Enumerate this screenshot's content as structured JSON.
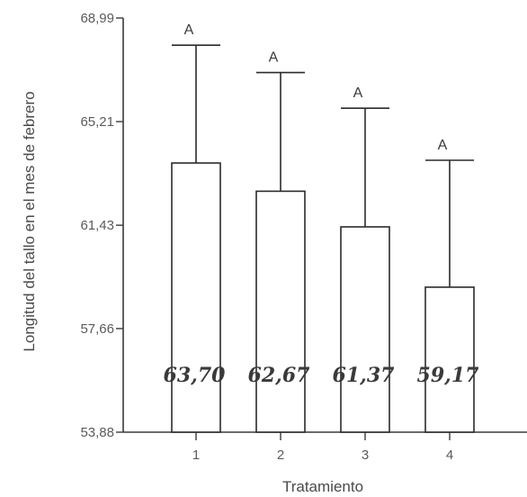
{
  "chart_data": {
    "type": "bar",
    "xlabel": "Tratamiento",
    "ylabel": "Longitud del tallo en el mes de febrero",
    "categories": [
      "1",
      "2",
      "3",
      "4"
    ],
    "values": [
      63.7,
      62.67,
      61.37,
      59.17
    ],
    "value_labels": [
      "63,70",
      "62,67",
      "61,37",
      "59,17"
    ],
    "error_upper": [
      68.0,
      67.0,
      65.7,
      63.8
    ],
    "significance_letters": [
      "A",
      "A",
      "A",
      "A"
    ],
    "yticks": [
      53.88,
      57.66,
      61.43,
      65.21,
      68.99
    ],
    "ytick_labels": [
      "53,88",
      "57,66",
      "61,43",
      "65,21",
      "68,99"
    ],
    "ylim": [
      53.88,
      68.99
    ],
    "grid": false,
    "colors": {
      "bar_fill": "#ffffff",
      "bar_stroke": "#2b2b2b",
      "first_tick_label": "#8b3a8b"
    }
  }
}
